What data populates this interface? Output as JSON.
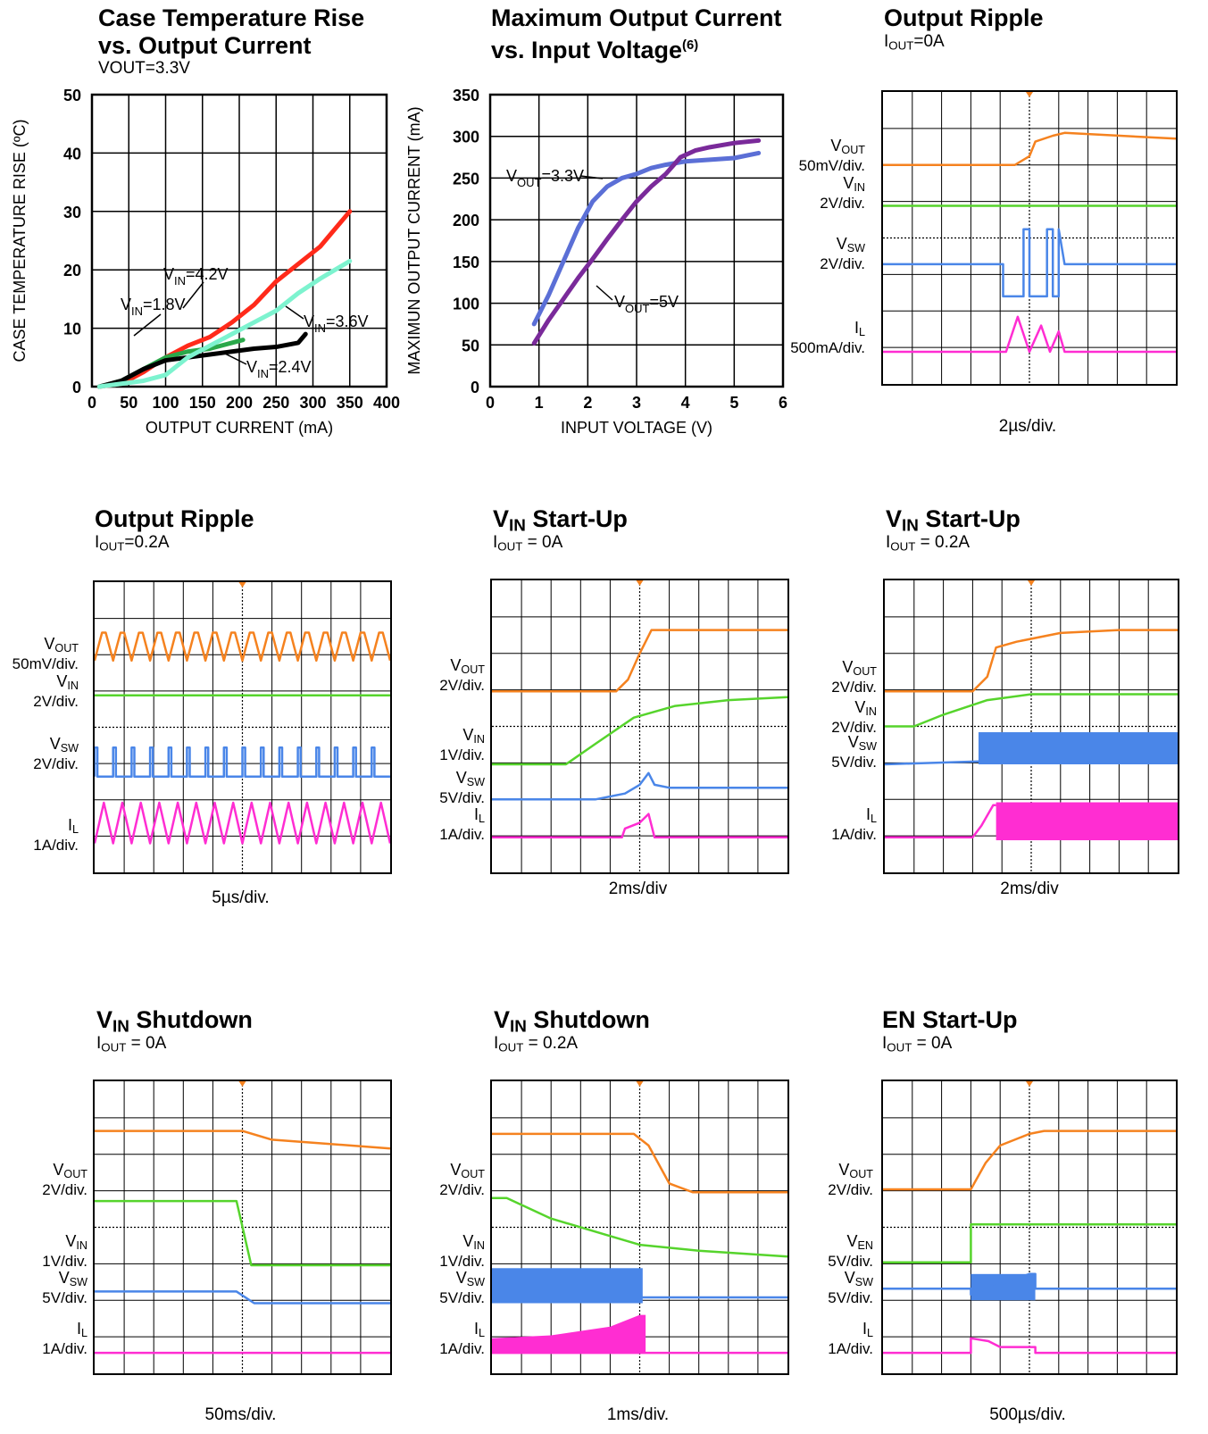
{
  "colors": {
    "vout": "#f5821f",
    "vin": "#56d42c",
    "vsw": "#4a86e8",
    "il": "#ff2dd2",
    "red": "#ff2a1a",
    "green": "#2aa84a",
    "black": "#000000",
    "aqua": "#7df3cf",
    "blue": "#5b6fd6",
    "purple": "#7a2a9a"
  },
  "chart_data": [
    {
      "type": "line",
      "title_line1": "Case Temperature Rise",
      "title_line2": "vs. Output Current",
      "subtitle": "VOUT=3.3V",
      "xlabel": "OUTPUT CURRENT (mA)",
      "ylabel": "CASE TEMPERATURE RISE (ºC)",
      "xlim": [
        0,
        400
      ],
      "ylim": [
        0,
        50
      ],
      "xticks": [
        "0",
        "50",
        "100",
        "150",
        "200",
        "250",
        "300",
        "350",
        "400"
      ],
      "yticks": [
        "0",
        "10",
        "20",
        "30",
        "40",
        "50"
      ],
      "grid": true,
      "series": [
        {
          "name": "VIN=4.2V",
          "color": "red",
          "x": [
            10,
            40,
            70,
            100,
            130,
            160,
            190,
            220,
            250,
            280,
            310,
            330,
            350
          ],
          "y": [
            0,
            0.5,
            2.5,
            5,
            7,
            8.5,
            11,
            14,
            18,
            21,
            24,
            27,
            30
          ]
        },
        {
          "name": "VIN=1.8V",
          "color": "green",
          "x": [
            10,
            40,
            70,
            100,
            130,
            160,
            190,
            205
          ],
          "y": [
            0,
            1,
            3,
            5,
            6,
            6.5,
            7.5,
            8
          ]
        },
        {
          "name": "VIN=2.4V",
          "color": "black",
          "x": [
            10,
            40,
            70,
            100,
            130,
            160,
            190,
            220,
            250,
            280,
            290
          ],
          "y": [
            0,
            1,
            3,
            4.5,
            5,
            5.5,
            6,
            6.5,
            6.8,
            7.5,
            9
          ]
        },
        {
          "name": "VIN=3.6V",
          "color": "aqua",
          "x": [
            10,
            40,
            70,
            100,
            130,
            160,
            190,
            220,
            250,
            280,
            310,
            330,
            350
          ],
          "y": [
            0,
            0.5,
            1,
            2,
            5,
            7,
            9,
            11,
            13,
            16,
            18.5,
            20,
            21.5
          ]
        }
      ],
      "annotations": [
        {
          "label": "VIN=4.2V",
          "target_series": 0
        },
        {
          "label": "VIN=1.8V",
          "target_series": 1
        },
        {
          "label": "VIN=2.4V",
          "target_series": 2
        },
        {
          "label": "VIN=3.6V",
          "target_series": 3
        }
      ]
    },
    {
      "type": "line",
      "title_line1": "Maximum Output Current",
      "title_line2": "vs. Input Voltage",
      "title_sup": "(6)",
      "xlabel": "INPUT VOLTAGE (V)",
      "ylabel": "MAXIMUN OUTPUT CURRENT (mA)",
      "xlim": [
        0,
        6
      ],
      "ylim": [
        0,
        350
      ],
      "xticks": [
        "0",
        "1",
        "2",
        "3",
        "4",
        "5",
        "6"
      ],
      "yticks": [
        "0",
        "50",
        "100",
        "150",
        "200",
        "250",
        "300",
        "350"
      ],
      "grid": true,
      "series": [
        {
          "name": "VOUT=3.3V",
          "color": "blue",
          "x": [
            0.9,
            1.2,
            1.5,
            1.8,
            2.1,
            2.4,
            2.7,
            3.0,
            3.3,
            3.6,
            4.0,
            4.5,
            5.0,
            5.5
          ],
          "y": [
            75,
            110,
            150,
            190,
            222,
            240,
            250,
            255,
            262,
            266,
            270,
            272,
            274,
            280
          ]
        },
        {
          "name": "VOUT=5V",
          "color": "purple",
          "x": [
            0.9,
            1.2,
            1.5,
            1.8,
            2.1,
            2.4,
            2.7,
            3.0,
            3.3,
            3.6,
            3.9,
            4.2,
            4.5,
            5.0,
            5.5
          ],
          "y": [
            52,
            80,
            105,
            130,
            153,
            177,
            200,
            222,
            240,
            255,
            275,
            283,
            287,
            292,
            295
          ]
        }
      ],
      "annotations": [
        {
          "label": "VOUT=3.3V",
          "target_series": 0
        },
        {
          "label": "VOUT=5V",
          "target_series": 1
        }
      ]
    }
  ],
  "scope_panels": [
    {
      "title_main": "Output Ripple",
      "title_sub": "",
      "condition": "IOUT=0A",
      "time_div": "2µs/div.",
      "labels": [
        "VOUT 50mV/div.",
        "VIN 2V/div.",
        "VSW 2V/div.",
        "IL 500mA/div."
      ]
    },
    {
      "title_main": "Output Ripple",
      "title_sub": "",
      "condition": "IOUT=0.2A",
      "time_div": "5µs/div.",
      "labels": [
        "VOUT 50mV/div.",
        "VIN 2V/div.",
        "VSW 2V/div.",
        "IL 1A/div."
      ]
    },
    {
      "title_main": "V",
      "title_sub": "IN",
      "title_rest": " Start-Up",
      "condition": "IOUT = 0A",
      "time_div": "2ms/div",
      "labels": [
        "VOUT 2V/div.",
        "VIN 1V/div.",
        "VSW 5V/div.",
        "IL 1A/div."
      ]
    },
    {
      "title_main": "V",
      "title_sub": "IN",
      "title_rest": " Start-Up",
      "condition": "IOUT = 0.2A",
      "time_div": "2ms/div",
      "labels": [
        "VOUT 2V/div.",
        "VIN 2V/div.",
        "VSW 5V/div.",
        "IL 1A/div."
      ]
    },
    {
      "title_main": "V",
      "title_sub": "IN",
      "title_rest": " Shutdown",
      "condition": "IOUT = 0A",
      "time_div": "50ms/div.",
      "labels": [
        "VOUT 2V/div.",
        "VIN 1V/div.",
        "VSW 5V/div.",
        "IL 1A/div."
      ]
    },
    {
      "title_main": "V",
      "title_sub": "IN",
      "title_rest": " Shutdown",
      "condition": "IOUT = 0.2A",
      "time_div": "1ms/div.",
      "labels": [
        "VOUT 2V/div.",
        "VIN 1V/div.",
        "VSW 5V/div.",
        "IL 1A/div."
      ]
    },
    {
      "title_main": "EN Start-Up",
      "title_sub": "",
      "condition": "IOUT = 0A",
      "time_div": "500µs/div.",
      "labels": [
        "VOUT 2V/div.",
        "VEN 5V/div.",
        "VSW 5V/div.",
        "IL 1A/div."
      ]
    }
  ]
}
